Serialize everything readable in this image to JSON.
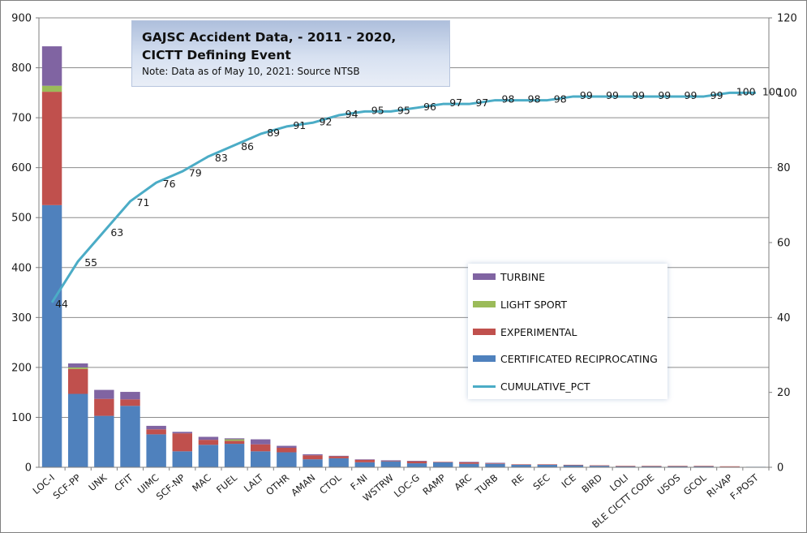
{
  "title": {
    "line1": "GAJSC Accident Data,  -  2011 - 2020,",
    "line2": "CICTT Defining Event",
    "note": "Note: Data as of  May 10, 2021: Source NTSB"
  },
  "colors": {
    "certificated": "#4f81bd",
    "experimental": "#c0504d",
    "light_sport": "#9bbb59",
    "turbine": "#8064a2",
    "cumulative": "#4bacc6"
  },
  "chart_data": {
    "type": "bar",
    "stacked": true,
    "categories": [
      "LOC-I",
      "SCF-PP",
      "UNK",
      "CFIT",
      "UIMC",
      "SCF-NP",
      "MAC",
      "FUEL",
      "LALT",
      "OTHR",
      "AMAN",
      "CTOL",
      "F-NI",
      "WSTRW",
      "LOC-G",
      "RAMP",
      "ARC",
      "TURB",
      "RE",
      "SEC",
      "ICE",
      "BIRD",
      "LOLI",
      "BLE CICTT CODE",
      "USOS",
      "GCOL",
      "RI-VAP",
      "F-POST"
    ],
    "series": [
      {
        "name": "CERTIFICATED RECIPROCATING",
        "values": [
          525,
          147,
          103,
          123,
          66,
          32,
          45,
          47,
          32,
          30,
          16,
          18,
          10,
          12,
          8,
          10,
          7,
          7,
          5,
          5,
          4,
          3,
          2,
          2,
          2,
          2,
          1,
          1
        ]
      },
      {
        "name": "EXPERIMENTAL",
        "values": [
          227,
          50,
          34,
          13,
          10,
          36,
          10,
          6,
          14,
          9,
          8,
          4,
          5,
          1,
          4,
          1,
          3,
          1,
          1,
          1,
          1,
          1,
          1,
          1,
          1,
          1,
          1,
          0
        ]
      },
      {
        "name": "LIGHT SPORT",
        "values": [
          12,
          3,
          0,
          0,
          0,
          0,
          0,
          3,
          0,
          0,
          0,
          0,
          0,
          0,
          0,
          0,
          0,
          0,
          0,
          0,
          0,
          0,
          0,
          0,
          0,
          0,
          0,
          0
        ]
      },
      {
        "name": "TURBINE",
        "values": [
          79,
          8,
          18,
          15,
          7,
          3,
          6,
          2,
          10,
          4,
          2,
          1,
          1,
          1,
          1,
          0,
          1,
          1,
          0,
          0,
          0,
          0,
          0,
          0,
          0,
          0,
          0,
          0
        ]
      },
      {
        "name": "CUMULATIVE_PCT",
        "axis": "right",
        "type": "line",
        "values": [
          44,
          55,
          63,
          71,
          76,
          79,
          83,
          86,
          89,
          91,
          92,
          94,
          95,
          95,
          96,
          97,
          97,
          98,
          98,
          98,
          99,
          99,
          99,
          99,
          99,
          99,
          100,
          100
        ]
      }
    ],
    "ylim": [
      0,
      900
    ],
    "y2lim": [
      0,
      120
    ],
    "yticks": [
      "0",
      "100",
      "200",
      "300",
      "400",
      "500",
      "600",
      "700",
      "800",
      "900"
    ],
    "y2ticks": [
      "0",
      "20",
      "40",
      "60",
      "80",
      "100",
      "120"
    ],
    "grid": true,
    "legend_position": "middle-right"
  }
}
